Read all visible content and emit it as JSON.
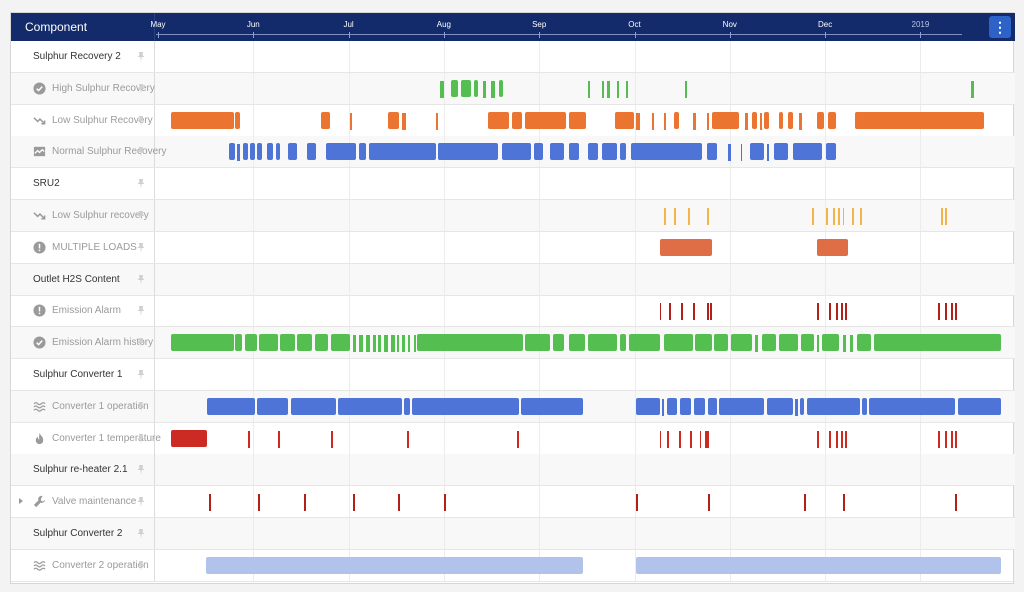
{
  "header": {
    "component_label": "Component",
    "months": [
      "May",
      "Jun",
      "Jul",
      "Aug",
      "Sep",
      "Oct",
      "Nov",
      "Dec",
      "2019"
    ],
    "menu_icon": "more-vertical-icon"
  },
  "colors": {
    "header_bg": "#132a6b",
    "menu_btn": "#2d63c8",
    "green": "#55be50",
    "orange": "#ec7431",
    "blue": "#4d74d6",
    "yellow": "#f2b54b",
    "salmon": "#df6d45",
    "red": "#cc2b23",
    "dark_red": "#b2201c",
    "light_blue": "#b1c3ea"
  },
  "rows": [
    {
      "label": "Sulphur Recovery 2",
      "icon": "",
      "child": false,
      "alt": false,
      "color": "",
      "segments": []
    },
    {
      "label": "High Sulphur Recovery",
      "icon": "check-circle-icon",
      "child": true,
      "alt": true,
      "color": "green",
      "segments": [
        [
          2.9,
          2.94
        ],
        [
          3.01,
          3.08
        ],
        [
          3.12,
          3.22
        ],
        [
          3.25,
          3.3
        ],
        [
          3.35,
          3.38
        ],
        [
          3.43,
          3.47
        ],
        [
          3.51,
          3.56
        ],
        [
          4.45,
          4.47
        ],
        [
          4.6,
          4.62
        ],
        [
          4.65,
          4.68
        ],
        [
          4.75,
          4.77
        ],
        [
          4.85,
          4.87
        ],
        [
          5.47,
          5.49
        ],
        [
          8.47,
          8.5
        ]
      ]
    },
    {
      "label": "Low Sulphur Recovery",
      "icon": "trend-down-icon",
      "child": true,
      "alt": false,
      "color": "orange",
      "segments": [
        [
          0.07,
          0.73
        ],
        [
          0.75,
          0.8
        ],
        [
          1.65,
          1.74
        ],
        [
          1.95,
          1.97
        ],
        [
          2.35,
          2.47
        ],
        [
          2.5,
          2.54
        ],
        [
          2.85,
          2.88
        ],
        [
          3.4,
          3.62
        ],
        [
          3.65,
          3.76
        ],
        [
          3.79,
          4.22
        ],
        [
          4.25,
          4.43
        ],
        [
          4.73,
          4.93
        ],
        [
          4.95,
          4.99
        ],
        [
          5.12,
          5.14
        ],
        [
          5.25,
          5.27
        ],
        [
          5.35,
          5.4
        ],
        [
          5.55,
          5.58
        ],
        [
          5.7,
          5.72
        ],
        [
          5.75,
          6.03
        ],
        [
          6.1,
          6.13
        ],
        [
          6.17,
          6.22
        ],
        [
          6.25,
          6.27
        ],
        [
          6.3,
          6.35
        ],
        [
          6.45,
          6.5
        ],
        [
          6.55,
          6.6
        ],
        [
          6.66,
          6.7
        ],
        [
          6.85,
          6.93
        ],
        [
          6.97,
          7.05
        ],
        [
          7.25,
          8.6
        ]
      ]
    },
    {
      "label": "Normal Sulphur Recovery",
      "icon": "chart-icon",
      "child": true,
      "alt": true,
      "color": "blue",
      "segments": [
        [
          0.68,
          0.75
        ],
        [
          0.77,
          0.8
        ],
        [
          0.83,
          0.88
        ],
        [
          0.9,
          0.95
        ],
        [
          0.98,
          1.03
        ],
        [
          1.08,
          1.14
        ],
        [
          1.17,
          1.22
        ],
        [
          1.3,
          1.4
        ],
        [
          1.5,
          1.6
        ],
        [
          1.7,
          2.02
        ],
        [
          2.05,
          2.12
        ],
        [
          2.15,
          2.85
        ],
        [
          2.88,
          3.35
        ],
        [
          2.88,
          3.05
        ],
        [
          3.08,
          3.5
        ],
        [
          3.55,
          3.85
        ],
        [
          3.88,
          3.98
        ],
        [
          4.05,
          4.2
        ],
        [
          4.25,
          4.35
        ],
        [
          4.45,
          4.55
        ],
        [
          4.6,
          4.75
        ],
        [
          4.79,
          4.85
        ],
        [
          4.9,
          5.65
        ],
        [
          5.7,
          5.8
        ],
        [
          5.92,
          5.95
        ],
        [
          6.05,
          6.07
        ],
        [
          6.15,
          6.3
        ],
        [
          6.33,
          6.35
        ],
        [
          6.4,
          6.55
        ],
        [
          6.6,
          6.9
        ],
        [
          6.95,
          7.05
        ]
      ]
    },
    {
      "label": "SRU2",
      "icon": "",
      "child": false,
      "alt": false,
      "color": "",
      "segments": []
    },
    {
      "label": "Low Sulphur recovery",
      "icon": "trend-down-icon",
      "child": true,
      "alt": true,
      "color": "yellow",
      "segments": [
        [
          5.25,
          5.27
        ],
        [
          5.35,
          5.37
        ],
        [
          5.5,
          5.52
        ],
        [
          5.7,
          5.72
        ],
        [
          6.8,
          6.82
        ],
        [
          6.95,
          6.97
        ],
        [
          7.02,
          7.04
        ],
        [
          7.07,
          7.09
        ],
        [
          7.12,
          7.14
        ],
        [
          7.22,
          7.24
        ],
        [
          7.3,
          7.32
        ],
        [
          8.15,
          8.17
        ],
        [
          8.2,
          8.22
        ]
      ]
    },
    {
      "label": "MULTIPLE LOADS",
      "icon": "alert-circle-icon",
      "child": true,
      "alt": false,
      "color": "salmon",
      "segments": [
        [
          5.2,
          5.75
        ],
        [
          6.85,
          7.18
        ]
      ]
    },
    {
      "label": "Outlet H2S Content",
      "icon": "",
      "child": false,
      "alt": true,
      "color": "",
      "segments": []
    },
    {
      "label": "Emission Alarm",
      "icon": "alert-circle-icon",
      "child": true,
      "alt": false,
      "color": "dark_red",
      "segments": [
        [
          5.2,
          5.22
        ],
        [
          5.3,
          5.32
        ],
        [
          5.43,
          5.45
        ],
        [
          5.55,
          5.57
        ],
        [
          5.7,
          5.72
        ],
        [
          5.73,
          5.75
        ],
        [
          6.85,
          6.87
        ],
        [
          6.98,
          7.0
        ],
        [
          7.05,
          7.07
        ],
        [
          7.1,
          7.12
        ],
        [
          7.15,
          7.17
        ],
        [
          8.12,
          8.14
        ],
        [
          8.2,
          8.22
        ],
        [
          8.26,
          8.28
        ],
        [
          8.3,
          8.32
        ]
      ]
    },
    {
      "label": "Emission Alarm history",
      "icon": "check-circle-icon",
      "child": true,
      "alt": true,
      "color": "green",
      "segments": [
        [
          0.07,
          0.73
        ],
        [
          0.75,
          0.82
        ],
        [
          0.85,
          0.98
        ],
        [
          1.0,
          1.2
        ],
        [
          1.22,
          1.37
        ],
        [
          1.4,
          1.55
        ],
        [
          1.58,
          1.72
        ],
        [
          1.75,
          1.95
        ],
        [
          1.98,
          2.02
        ],
        [
          2.05,
          2.09
        ],
        [
          2.12,
          2.16
        ],
        [
          2.19,
          2.22
        ],
        [
          2.25,
          2.28
        ],
        [
          2.31,
          2.35
        ],
        [
          2.38,
          2.42
        ],
        [
          2.45,
          2.47
        ],
        [
          2.5,
          2.53
        ],
        [
          2.56,
          2.58
        ],
        [
          2.62,
          2.64
        ],
        [
          2.66,
          3.77
        ],
        [
          3.79,
          4.05
        ],
        [
          4.08,
          4.2
        ],
        [
          4.25,
          4.42
        ],
        [
          4.45,
          4.75
        ],
        [
          4.78,
          4.85
        ],
        [
          4.88,
          5.2
        ],
        [
          5.25,
          5.55
        ],
        [
          5.57,
          5.75
        ],
        [
          5.77,
          5.92
        ],
        [
          5.95,
          6.17
        ],
        [
          6.2,
          6.23
        ],
        [
          6.28,
          6.42
        ],
        [
          6.45,
          6.65
        ],
        [
          6.68,
          6.82
        ],
        [
          6.85,
          6.87
        ],
        [
          6.9,
          7.08
        ],
        [
          7.12,
          7.16
        ],
        [
          7.2,
          7.23
        ],
        [
          7.27,
          7.42
        ],
        [
          7.45,
          8.78
        ]
      ]
    },
    {
      "label": "Sulphur Converter 1",
      "icon": "",
      "child": false,
      "alt": false,
      "color": "",
      "segments": []
    },
    {
      "label": "Converter 1 operation",
      "icon": "waves-icon",
      "child": true,
      "alt": true,
      "color": "blue",
      "segments": [
        [
          0.45,
          0.95
        ],
        [
          0.98,
          1.3
        ],
        [
          1.33,
          1.8
        ],
        [
          1.83,
          2.5
        ],
        [
          2.52,
          2.58
        ],
        [
          2.6,
          3.73
        ],
        [
          3.75,
          4.4
        ],
        [
          4.95,
          5.2
        ],
        [
          5.23,
          5.25
        ],
        [
          5.28,
          5.38
        ],
        [
          5.41,
          5.53
        ],
        [
          5.56,
          5.68
        ],
        [
          5.71,
          5.8
        ],
        [
          5.82,
          6.3
        ],
        [
          6.33,
          6.6
        ],
        [
          6.62,
          6.65
        ],
        [
          6.67,
          6.72
        ],
        [
          6.75,
          7.3
        ],
        [
          7.32,
          7.38
        ],
        [
          7.4,
          8.3
        ],
        [
          8.33,
          8.78
        ]
      ]
    },
    {
      "label": "Converter 1 temperature",
      "icon": "flame-icon",
      "child": true,
      "alt": false,
      "color": "red",
      "segments": [
        [
          0.07,
          0.45
        ],
        [
          0.88,
          0.9
        ],
        [
          1.2,
          1.22
        ],
        [
          1.75,
          1.77
        ],
        [
          2.55,
          2.57
        ],
        [
          3.7,
          3.72
        ],
        [
          5.2,
          5.22
        ],
        [
          5.28,
          5.3
        ],
        [
          5.4,
          5.42
        ],
        [
          5.52,
          5.54
        ],
        [
          5.62,
          5.64
        ],
        [
          5.68,
          5.72
        ],
        [
          6.85,
          6.87
        ],
        [
          6.98,
          7.0
        ],
        [
          7.05,
          7.07
        ],
        [
          7.1,
          7.12
        ],
        [
          7.15,
          7.17
        ],
        [
          8.12,
          8.14
        ],
        [
          8.2,
          8.22
        ],
        [
          8.26,
          8.28
        ],
        [
          8.3,
          8.32
        ]
      ]
    },
    {
      "label": "Sulphur re-heater 2.1",
      "icon": "",
      "child": false,
      "alt": true,
      "color": "",
      "segments": []
    },
    {
      "label": "Valve maintenance",
      "icon": "wrench-icon",
      "child": true,
      "alt": false,
      "color": "dark_red",
      "expandable": true,
      "segments": [
        [
          0.47,
          0.49
        ],
        [
          0.99,
          1.01
        ],
        [
          1.47,
          1.49
        ],
        [
          1.98,
          2.0
        ],
        [
          2.46,
          2.48
        ],
        [
          2.94,
          2.96
        ],
        [
          4.95,
          4.97
        ],
        [
          5.71,
          5.73
        ],
        [
          6.72,
          6.74
        ],
        [
          7.13,
          7.15
        ],
        [
          8.3,
          8.32
        ]
      ]
    },
    {
      "label": "Sulphur Converter 2",
      "icon": "",
      "child": false,
      "alt": true,
      "color": "",
      "segments": []
    },
    {
      "label": "Converter 2 operation",
      "icon": "waves-icon",
      "child": true,
      "alt": false,
      "color": "light_blue",
      "segments": [
        [
          0.44,
          4.4
        ],
        [
          4.95,
          8.78
        ]
      ]
    }
  ]
}
